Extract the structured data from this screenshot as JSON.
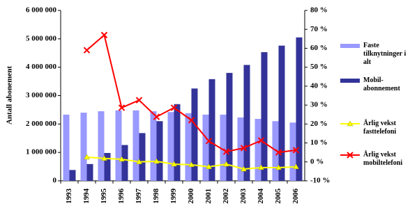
{
  "chart_data": {
    "type": "combo",
    "y_label": "Antall abonement",
    "categories": [
      "1993",
      "1994",
      "1995",
      "1996",
      "1997",
      "1998",
      "1999",
      "2000",
      "2001",
      "2002",
      "2003",
      "2004",
      "2005",
      "2006"
    ],
    "ylim": [
      0,
      6000000
    ],
    "yticks": [
      {
        "value": 0,
        "label": "0"
      },
      {
        "value": 1000000,
        "label": "1 000 000"
      },
      {
        "value": 2000000,
        "label": "2 000 000"
      },
      {
        "value": 3000000,
        "label": "3 000 000"
      },
      {
        "value": 4000000,
        "label": "4 000 000"
      },
      {
        "value": 5000000,
        "label": "5 000 000"
      },
      {
        "value": 6000000,
        "label": "6 000 000"
      }
    ],
    "y2lim": [
      -10,
      80
    ],
    "y2ticks": [
      {
        "value": -10,
        "label": "-10 %"
      },
      {
        "value": 0,
        "label": "0 %"
      },
      {
        "value": 10,
        "label": "10 %"
      },
      {
        "value": 20,
        "label": "20 %"
      },
      {
        "value": 30,
        "label": "30 %"
      },
      {
        "value": 40,
        "label": "40 %"
      },
      {
        "value": 50,
        "label": "50 %"
      },
      {
        "value": 60,
        "label": "60 %"
      },
      {
        "value": 70,
        "label": "70 %"
      },
      {
        "value": 80,
        "label": "80 %"
      }
    ],
    "series": [
      {
        "name": "Faste tilknytninger i alt",
        "type": "bar",
        "color": "#9999ff",
        "values": [
          2330000,
          2400000,
          2450000,
          2480000,
          2480000,
          2450000,
          2420000,
          2380000,
          2330000,
          2330000,
          2230000,
          2180000,
          2100000,
          2050000
        ]
      },
      {
        "name": "Mobil-abonnement",
        "type": "bar",
        "color": "#333399",
        "values": [
          380000,
          590000,
          980000,
          1260000,
          1680000,
          2100000,
          2700000,
          3250000,
          3580000,
          3800000,
          4080000,
          4530000,
          4760000,
          5050000
        ]
      },
      {
        "name": "Årlig vekst fasttelefoni",
        "type": "line",
        "marker": "triangle",
        "axis": "y2",
        "color": "#ffff00",
        "values": [
          null,
          2.5,
          1.8,
          1.4,
          0,
          0.3,
          -1.2,
          -1.5,
          -2.6,
          -1.2,
          -3.8,
          -3,
          -3,
          -2.6
        ]
      },
      {
        "name": "Årlig vekst mobiltelefoni",
        "type": "line",
        "marker": "x",
        "axis": "y2",
        "color": "#ff0000",
        "values": [
          null,
          59,
          67,
          28.6,
          32.6,
          23.8,
          28.6,
          22,
          11,
          5.4,
          7.3,
          11.3,
          5,
          6.2
        ]
      }
    ]
  }
}
